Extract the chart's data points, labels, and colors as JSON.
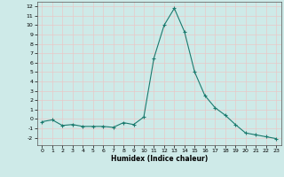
{
  "x": [
    0,
    1,
    2,
    3,
    4,
    5,
    6,
    7,
    8,
    9,
    10,
    11,
    12,
    13,
    14,
    15,
    16,
    17,
    18,
    19,
    20,
    21,
    22,
    23
  ],
  "y": [
    -0.3,
    -0.1,
    -0.7,
    -0.6,
    -0.8,
    -0.8,
    -0.8,
    -0.9,
    -0.4,
    -0.6,
    0.2,
    6.5,
    10.0,
    11.8,
    9.3,
    5.0,
    2.5,
    1.2,
    0.4,
    -0.6,
    -1.5,
    -1.7,
    -1.9,
    -2.1
  ],
  "line_color": "#1a7a6e",
  "marker": "+",
  "bg_color": "#ceeae8",
  "grid_color": "#e8c8c8",
  "xlabel": "Humidex (Indice chaleur)",
  "ylim": [
    -2.8,
    12.5
  ],
  "xlim": [
    -0.5,
    23.5
  ],
  "yticks": [
    -2,
    -1,
    0,
    1,
    2,
    3,
    4,
    5,
    6,
    7,
    8,
    9,
    10,
    11,
    12
  ],
  "xticks": [
    0,
    1,
    2,
    3,
    4,
    5,
    6,
    7,
    8,
    9,
    10,
    11,
    12,
    13,
    14,
    15,
    16,
    17,
    18,
    19,
    20,
    21,
    22,
    23
  ]
}
